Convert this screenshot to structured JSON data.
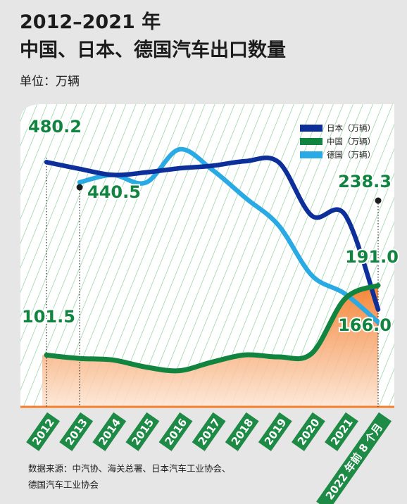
{
  "title_line1": "2012–2021 年",
  "title_line2": "中国、日本、德国汽车出口数量",
  "unit_label": "单位：万辆",
  "source_line1": "数据来源：中汽协、海关总署、日本汽车工业协会、",
  "source_line2": "德国汽车工业协会",
  "chart_data": {
    "type": "line",
    "categories": [
      "2012",
      "2013",
      "2014",
      "2015",
      "2016",
      "2017",
      "2018",
      "2019",
      "2020",
      "2021",
      "2022 年前 8 个月"
    ],
    "series": [
      {
        "name": "日本（万辆）",
        "color": "#0d2f9a",
        "values": [
          480.2,
          467,
          455,
          460,
          468,
          473,
          482,
          480,
          375,
          377,
          191.0
        ]
      },
      {
        "name": "中国（万辆）",
        "color": "#11853f",
        "values": [
          101.5,
          95,
          92,
          78,
          71,
          88,
          102,
          98,
          105,
          212,
          238.3
        ]
      },
      {
        "name": "德国（万辆）",
        "color": "#2aaae4",
        "values": [
          null,
          440.5,
          455,
          440,
          505,
          465,
          410,
          356,
          258,
          222,
          166.0
        ]
      }
    ],
    "annotations": [
      {
        "text": "480.2",
        "category": "2012",
        "series": "日本（万辆）",
        "value": 480.2
      },
      {
        "text": "440.5",
        "category": "2013",
        "series": "德国（万辆）",
        "value": 440.5
      },
      {
        "text": "101.5",
        "category": "2012",
        "series": "中国（万辆）",
        "value": 101.5
      },
      {
        "text": "238.3",
        "category": "2022 年前 8 个月",
        "series": "中国（万辆）",
        "value": 238.3
      },
      {
        "text": "191.0",
        "category": "2022 年前 8 个月",
        "series": "日本（万辆）",
        "value": 191.0
      },
      {
        "text": "166.0",
        "category": "2022 年前 8 个月",
        "series": "德国（万辆）",
        "value": 166.0
      }
    ],
    "ylim": [
      0,
      540
    ],
    "grid": false,
    "legend_position": "top-right",
    "colors": {
      "background": "#e6e6e6",
      "panel": "#ffffff",
      "hatch": "#8fd0a0",
      "label_green": "#11853f",
      "tick_label_bg": "#1d8a45",
      "area_top": "#f47f2c",
      "area_bottom": "#fde7d6"
    }
  }
}
